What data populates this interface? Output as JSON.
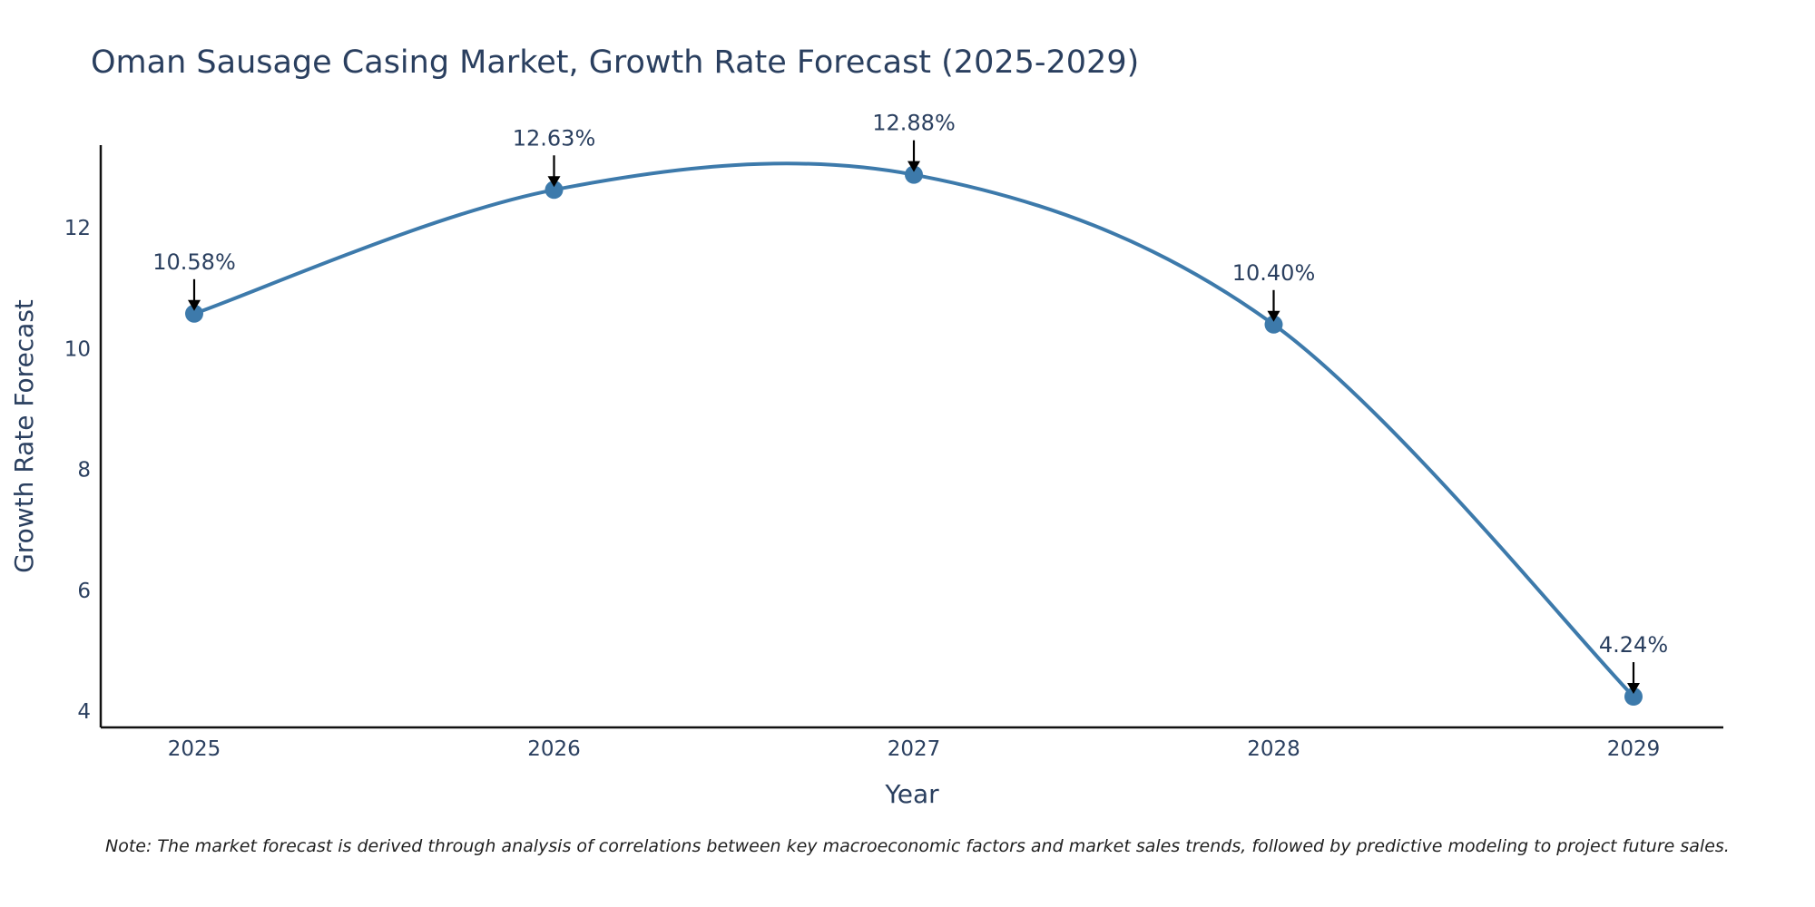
{
  "chart_data": {
    "type": "line",
    "title": "Oman Sausage Casing Market, Growth Rate Forecast (2025-2029)",
    "xlabel": "Year",
    "ylabel": "Growth Rate Forecast",
    "categories": [
      "2025",
      "2026",
      "2027",
      "2028",
      "2029"
    ],
    "series": [
      {
        "name": "Growth Rate Forecast",
        "values": [
          10.58,
          12.63,
          12.88,
          10.4,
          4.24
        ],
        "labels": [
          "10.58%",
          "12.63%",
          "12.88%",
          "10.40%",
          "4.24%"
        ],
        "color": "#3d7aab"
      }
    ],
    "yticks": [
      4,
      6,
      8,
      10,
      12
    ],
    "ytick_labels": [
      "4",
      "6",
      "8",
      "10",
      "12"
    ],
    "ylim": [
      3.73,
      13.37
    ],
    "grid": false,
    "note": "Note: The market forecast is derived through analysis of correlations between key macroeconomic factors and market sales trends, followed by predictive modeling to project future sales."
  }
}
